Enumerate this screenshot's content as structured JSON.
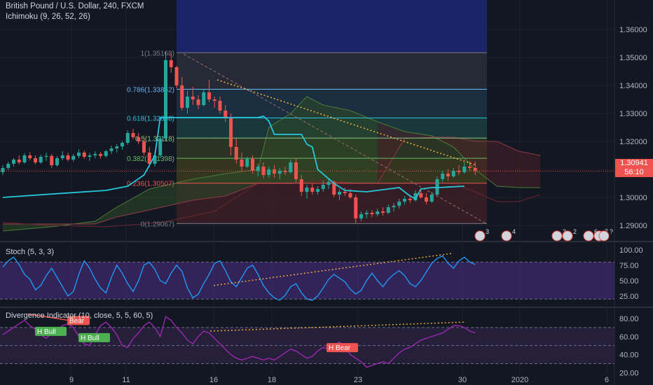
{
  "header": {
    "symbol_line": "British Pound / U.S. Dollar, 240, FXCM",
    "indicator_line": "Ichimoku (9, 26, 52, 26)"
  },
  "price_tags": {
    "last_price": "1.30941",
    "countdown": "56:10"
  },
  "colors": {
    "background": "#131722",
    "grid": "#1e222d",
    "axis_text": "#b2b5be",
    "up_candle": "#26a69a",
    "down_candle": "#ef5350",
    "conversion_line": "#26c6da",
    "cloud_green": "#4a7c3a",
    "cloud_red": "#6b2e35",
    "stoch_line": "#2196f3",
    "stoch_band": "#3d2a6b",
    "div_line": "#9c27b0",
    "dotted_trend": "#f5b041",
    "price_line": "#ef5350"
  },
  "chart_data": [
    {
      "id": "price",
      "type": "candlestick",
      "ylim": [
        1.2855,
        1.3705
      ],
      "y_ticks": [
        "1.36000",
        "1.35000",
        "1.34000",
        "1.33000",
        "1.32000",
        "1.31000",
        "1.30000",
        "1.29000"
      ],
      "x_ticks": [
        "9",
        "11",
        "16",
        "18",
        "23",
        "30",
        "2020",
        "6"
      ],
      "fibonacci": [
        {
          "ratio": "1",
          "price": 1.35168,
          "label": "1(1.35168)",
          "color": "#787b86"
        },
        {
          "ratio": "0.786",
          "price": 1.33862,
          "label": "0.786(1.33862)",
          "color": "#64b5f6"
        },
        {
          "ratio": "0.618",
          "price": 1.32838,
          "label": "0.618(1.32838)",
          "color": "#26c6da"
        },
        {
          "ratio": "0.5",
          "price": 1.32118,
          "label": "0.5(1.32118)",
          "color": "#81c784"
        },
        {
          "ratio": "0.382",
          "price": 1.31398,
          "label": "0.382(1.31398)",
          "color": "#66bb6a"
        },
        {
          "ratio": "0.236",
          "price": 1.30507,
          "label": "0.236(1.30507)",
          "color": "#ef5350"
        },
        {
          "ratio": "0",
          "price": 1.29067,
          "label": "0(1.29067)",
          "color": "#787b86"
        }
      ],
      "last_price": 1.30941,
      "candles": [
        [
          1.309,
          1.3115,
          1.308,
          1.3105
        ],
        [
          1.3105,
          1.3128,
          1.3098,
          1.312
        ],
        [
          1.312,
          1.314,
          1.311,
          1.3135
        ],
        [
          1.3135,
          1.315,
          1.3118,
          1.3125
        ],
        [
          1.3125,
          1.3158,
          1.312,
          1.315
        ],
        [
          1.315,
          1.3162,
          1.3132,
          1.314
        ],
        [
          1.314,
          1.315,
          1.3118,
          1.3125
        ],
        [
          1.3125,
          1.3152,
          1.312,
          1.3145
        ],
        [
          1.3145,
          1.316,
          1.313,
          1.3148
        ],
        [
          1.3148,
          1.3155,
          1.3105,
          1.3115
        ],
        [
          1.3115,
          1.3148,
          1.311,
          1.314
        ],
        [
          1.314,
          1.3165,
          1.3132,
          1.315
        ],
        [
          1.315,
          1.316,
          1.3128,
          1.3135
        ],
        [
          1.3135,
          1.3155,
          1.3128,
          1.3148
        ],
        [
          1.3148,
          1.3172,
          1.314,
          1.316
        ],
        [
          1.316,
          1.3168,
          1.3138,
          1.3145
        ],
        [
          1.3145,
          1.3158,
          1.313,
          1.315
        ],
        [
          1.315,
          1.3165,
          1.314,
          1.3155
        ],
        [
          1.3155,
          1.3162,
          1.3138,
          1.3148
        ],
        [
          1.3148,
          1.317,
          1.3142,
          1.3165
        ],
        [
          1.3165,
          1.3185,
          1.3155,
          1.3175
        ],
        [
          1.3175,
          1.319,
          1.316,
          1.3182
        ],
        [
          1.3182,
          1.32,
          1.317,
          1.3195
        ],
        [
          1.3195,
          1.324,
          1.3188,
          1.323
        ],
        [
          1.323,
          1.3245,
          1.3208,
          1.3215
        ],
        [
          1.3215,
          1.323,
          1.319,
          1.32
        ],
        [
          1.32,
          1.3215,
          1.315,
          1.316
        ],
        [
          1.316,
          1.318,
          1.3108,
          1.312
        ],
        [
          1.312,
          1.3165,
          1.311,
          1.315
        ],
        [
          1.315,
          1.322,
          1.314,
          1.321
        ],
        [
          1.321,
          1.352,
          1.32,
          1.349
        ],
        [
          1.349,
          1.3515,
          1.3445,
          1.3465
        ],
        [
          1.3465,
          1.347,
          1.339,
          1.34
        ],
        [
          1.34,
          1.343,
          1.331,
          1.332
        ],
        [
          1.332,
          1.338,
          1.33,
          1.336
        ],
        [
          1.336,
          1.3395,
          1.333,
          1.335
        ],
        [
          1.335,
          1.3365,
          1.3315,
          1.333
        ],
        [
          1.333,
          1.3385,
          1.3325,
          1.3375
        ],
        [
          1.3375,
          1.342,
          1.334,
          1.335
        ],
        [
          1.335,
          1.336,
          1.332,
          1.3345
        ],
        [
          1.3345,
          1.336,
          1.33,
          1.331
        ],
        [
          1.331,
          1.333,
          1.327,
          1.3285
        ],
        [
          1.3285,
          1.33,
          1.315,
          1.318
        ],
        [
          1.318,
          1.321,
          1.312,
          1.3135
        ],
        [
          1.3135,
          1.316,
          1.3095,
          1.311
        ],
        [
          1.311,
          1.3145,
          1.3105,
          1.3138
        ],
        [
          1.3138,
          1.315,
          1.3085,
          1.3095
        ],
        [
          1.3095,
          1.312,
          1.3075,
          1.311
        ],
        [
          1.311,
          1.3125,
          1.3068,
          1.308
        ],
        [
          1.308,
          1.311,
          1.307,
          1.31
        ],
        [
          1.31,
          1.3115,
          1.307,
          1.3085
        ],
        [
          1.3085,
          1.3105,
          1.3065,
          1.3095
        ],
        [
          1.3095,
          1.311,
          1.308,
          1.309
        ],
        [
          1.309,
          1.3135,
          1.3085,
          1.3125
        ],
        [
          1.3125,
          1.314,
          1.3055,
          1.3065
        ],
        [
          1.3065,
          1.308,
          1.3005,
          1.302
        ],
        [
          1.302,
          1.3045,
          1.2995,
          1.3035
        ],
        [
          1.3035,
          1.305,
          1.301,
          1.302
        ],
        [
          1.302,
          1.304,
          1.301,
          1.303
        ],
        [
          1.303,
          1.306,
          1.302,
          1.3045
        ],
        [
          1.3045,
          1.307,
          1.303,
          1.3055
        ],
        [
          1.3055,
          1.306,
          1.3,
          1.301
        ],
        [
          1.301,
          1.303,
          1.299,
          1.302
        ],
        [
          1.302,
          1.3035,
          1.3005,
          1.3015
        ],
        [
          1.3015,
          1.303,
          1.2995,
          1.3
        ],
        [
          1.3,
          1.301,
          1.2908,
          1.2925
        ],
        [
          1.2925,
          1.295,
          1.2915,
          1.294
        ],
        [
          1.294,
          1.2955,
          1.2925,
          1.2945
        ],
        [
          1.2945,
          1.2955,
          1.293,
          1.294
        ],
        [
          1.294,
          1.296,
          1.2932,
          1.295
        ],
        [
          1.295,
          1.2965,
          1.2935,
          1.2945
        ],
        [
          1.2945,
          1.2975,
          1.294,
          1.2965
        ],
        [
          1.2965,
          1.298,
          1.295,
          1.297
        ],
        [
          1.297,
          1.2995,
          1.296,
          1.2985
        ],
        [
          1.2985,
          1.3005,
          1.2975,
          1.2995
        ],
        [
          1.2995,
          1.301,
          1.298,
          1.299
        ],
        [
          1.299,
          1.3025,
          1.2985,
          1.3015
        ],
        [
          1.3015,
          1.303,
          1.2995,
          1.3
        ],
        [
          1.3,
          1.3015,
          1.2975,
          1.2985
        ],
        [
          1.2985,
          1.302,
          1.298,
          1.301
        ],
        [
          1.301,
          1.3075,
          1.3005,
          1.3065
        ],
        [
          1.3065,
          1.3095,
          1.3055,
          1.3085
        ],
        [
          1.3085,
          1.31,
          1.306,
          1.3075
        ],
        [
          1.3075,
          1.3105,
          1.307,
          1.3095
        ],
        [
          1.3095,
          1.3115,
          1.308,
          1.309
        ],
        [
          1.309,
          1.3125,
          1.3085,
          1.311
        ],
        [
          1.311,
          1.313,
          1.3095,
          1.3105
        ],
        [
          1.3105,
          1.3128,
          1.308,
          1.3094
        ]
      ],
      "conversion_line": [
        [
          1,
          1.3
        ],
        [
          10,
          1.3012
        ],
        [
          20,
          1.3025
        ],
        [
          24,
          1.304
        ],
        [
          27,
          1.308
        ],
        [
          29,
          1.315
        ],
        [
          30,
          1.3285
        ],
        [
          40,
          1.3285
        ],
        [
          48,
          1.3285
        ],
        [
          49,
          1.329
        ],
        [
          50,
          1.3272
        ],
        [
          51,
          1.3225
        ],
        [
          56,
          1.3225
        ],
        [
          57,
          1.319
        ],
        [
          58,
          1.318
        ],
        [
          59,
          1.31
        ],
        [
          62,
          1.305
        ],
        [
          64,
          1.3025
        ],
        [
          68,
          1.302
        ],
        [
          72,
          1.303
        ],
        [
          74,
          1.3035
        ],
        [
          76,
          1.3005
        ],
        [
          77,
          1.2995
        ],
        [
          78,
          1.303
        ],
        [
          80,
          1.3035
        ],
        [
          82,
          1.3036
        ],
        [
          86,
          1.304
        ]
      ],
      "cloud_span_a": [
        [
          1,
          1.288
        ],
        [
          10,
          1.2895
        ],
        [
          18,
          1.2915
        ],
        [
          22,
          1.2965
        ],
        [
          28,
          1.303
        ],
        [
          36,
          1.3065
        ],
        [
          42,
          1.3085
        ],
        [
          48,
          1.31
        ],
        [
          50,
          1.325
        ],
        [
          54,
          1.33
        ],
        [
          57,
          1.336
        ],
        [
          60,
          1.333
        ],
        [
          65,
          1.331
        ],
        [
          70,
          1.327
        ],
        [
          75,
          1.3235
        ],
        [
          80,
          1.322
        ],
        [
          84,
          1.318
        ],
        [
          88,
          1.31
        ],
        [
          92,
          1.304
        ],
        [
          96,
          1.3035
        ],
        [
          100,
          1.3035
        ]
      ],
      "cloud_span_b": [
        [
          1,
          1.2905
        ],
        [
          10,
          1.2905
        ],
        [
          18,
          1.2905
        ],
        [
          22,
          1.293
        ],
        [
          28,
          1.2955
        ],
        [
          36,
          1.299
        ],
        [
          42,
          1.3005
        ],
        [
          48,
          1.305
        ],
        [
          54,
          1.305
        ],
        [
          60,
          1.306
        ],
        [
          66,
          1.305
        ],
        [
          70,
          1.305
        ],
        [
          75,
          1.321
        ],
        [
          80,
          1.3215
        ],
        [
          84,
          1.3215
        ],
        [
          88,
          1.32
        ],
        [
          92,
          1.32
        ],
        [
          96,
          1.3165
        ],
        [
          100,
          1.315
        ]
      ],
      "lagging_span": [
        [
          1,
          1.291
        ],
        [
          10,
          1.29
        ],
        [
          20,
          1.2895
        ],
        [
          30,
          1.291
        ],
        [
          40,
          1.295
        ],
        [
          48,
          1.305
        ],
        [
          55,
          1.3052
        ],
        [
          60,
          1.306
        ],
        [
          65,
          1.305
        ],
        [
          70,
          1.305
        ],
        [
          75,
          1.305
        ],
        [
          80,
          1.3053
        ],
        [
          84,
          1.305
        ],
        [
          88,
          1.302
        ],
        [
          92,
          1.2985
        ],
        [
          96,
          1.2985
        ],
        [
          100,
          1.301
        ]
      ]
    },
    {
      "id": "stoch",
      "type": "line",
      "title": "Stoch (5, 3, 3)",
      "ylim": [
        10,
        110
      ],
      "y_ticks": [
        "100.00",
        "75.00",
        "50.00",
        "25.00"
      ],
      "band": [
        20,
        80
      ],
      "values": [
        72,
        82,
        88,
        76,
        60,
        52,
        35,
        42,
        58,
        70,
        55,
        40,
        25,
        32,
        60,
        82,
        70,
        52,
        38,
        30,
        55,
        75,
        62,
        45,
        32,
        50,
        75,
        80,
        68,
        50,
        45,
        62,
        75,
        65,
        38,
        22,
        28,
        45,
        60,
        78,
        82,
        66,
        48,
        40,
        55,
        70,
        75,
        60,
        42,
        30,
        22,
        18,
        26,
        40,
        45,
        30,
        20,
        18,
        25,
        38,
        52,
        60,
        54,
        48,
        36,
        28,
        34,
        50,
        62,
        50,
        40,
        52,
        60,
        66,
        58,
        45,
        40,
        50,
        64,
        78,
        86,
        90,
        78,
        70,
        82,
        88,
        80,
        76
      ]
    },
    {
      "id": "divergence",
      "type": "line",
      "title": "Divergence Indicator (10, close, 5, 5, 60, 5)",
      "ylim": [
        18,
        90
      ],
      "y_ticks": [
        "80.00",
        "60.00",
        "40.00",
        "20.00"
      ],
      "band": [
        30,
        70
      ],
      "values": [
        62,
        66,
        70,
        74,
        78,
        72,
        68,
        62,
        58,
        64,
        68,
        72,
        74,
        70,
        60,
        52,
        50,
        62,
        72,
        76,
        70,
        62,
        50,
        48,
        58,
        64,
        72,
        76,
        70,
        60,
        82,
        78,
        70,
        64,
        56,
        52,
        60,
        66,
        64,
        58,
        52,
        46,
        40,
        36,
        34,
        36,
        38,
        36,
        34,
        36,
        34,
        38,
        42,
        46,
        44,
        40,
        36,
        38,
        44,
        48,
        46,
        50,
        54,
        48,
        40,
        36,
        32,
        26,
        28,
        30,
        32,
        30,
        36,
        42,
        46,
        48,
        52,
        56,
        58,
        60,
        62,
        64,
        68,
        72,
        72,
        70,
        66,
        64
      ]
    }
  ],
  "annotations": {
    "div_labels": [
      "Bear",
      "H Bull",
      "H Bull",
      "H Bear"
    ],
    "event_badges": [
      "3",
      "4",
      "3",
      "2",
      "6",
      "7",
      "?"
    ]
  }
}
